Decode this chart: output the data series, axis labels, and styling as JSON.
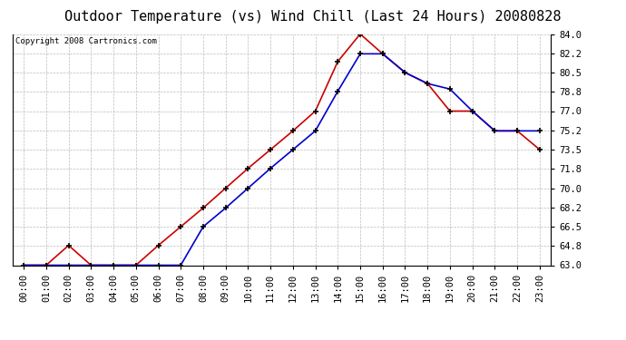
{
  "title": "Outdoor Temperature (vs) Wind Chill (Last 24 Hours) 20080828",
  "copyright": "Copyright 2008 Cartronics.com",
  "hours": [
    "00:00",
    "01:00",
    "02:00",
    "03:00",
    "04:00",
    "05:00",
    "06:00",
    "07:00",
    "08:00",
    "09:00",
    "10:00",
    "11:00",
    "12:00",
    "13:00",
    "14:00",
    "15:00",
    "16:00",
    "17:00",
    "18:00",
    "19:00",
    "20:00",
    "21:00",
    "22:00",
    "23:00"
  ],
  "temp": [
    63.0,
    63.0,
    64.8,
    63.0,
    63.0,
    63.0,
    64.8,
    66.5,
    68.2,
    70.0,
    71.8,
    73.5,
    75.2,
    77.0,
    81.5,
    84.0,
    82.2,
    80.5,
    79.5,
    77.0,
    77.0,
    75.2,
    75.2,
    73.5
  ],
  "windchill": [
    63.0,
    63.0,
    63.0,
    63.0,
    63.0,
    63.0,
    63.0,
    63.0,
    66.5,
    68.2,
    70.0,
    71.8,
    73.5,
    75.2,
    78.8,
    82.2,
    82.2,
    80.5,
    79.5,
    79.0,
    77.0,
    75.2,
    75.2,
    75.2
  ],
  "temp_color": "#cc0000",
  "windchill_color": "#0000cc",
  "bg_color": "#ffffff",
  "plot_bg_color": "#ffffff",
  "grid_color": "#bbbbbb",
  "ylim": [
    63.0,
    84.0
  ],
  "yticks": [
    63.0,
    64.8,
    66.5,
    68.2,
    70.0,
    71.8,
    73.5,
    75.2,
    77.0,
    78.8,
    80.5,
    82.2,
    84.0
  ],
  "title_fontsize": 11,
  "copyright_fontsize": 6.5,
  "tick_fontsize": 7.5
}
